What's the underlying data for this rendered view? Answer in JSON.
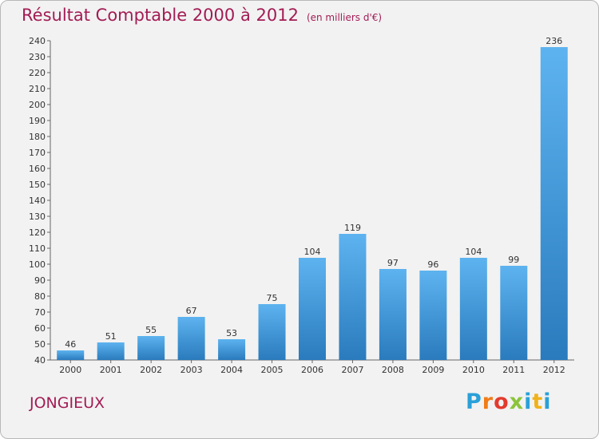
{
  "header": {
    "title": "Résultat Comptable 2000 à 2012",
    "subtitle": "(en milliers d'€)"
  },
  "footer": {
    "place": "JONGIEUX",
    "logo_text": "Proxiti"
  },
  "colors": {
    "title": "#a21c54",
    "bar_light": "#5db3ef",
    "bar_dark": "#2a7bbd",
    "background": "#f2f2f2"
  },
  "chart_data": {
    "type": "bar",
    "title": "Résultat Comptable 2000 à 2012",
    "subtitle": "(en milliers d'€)",
    "xlabel": "",
    "ylabel": "",
    "categories": [
      "2000",
      "2001",
      "2002",
      "2003",
      "2004",
      "2005",
      "2006",
      "2007",
      "2008",
      "2009",
      "2010",
      "2011",
      "2012"
    ],
    "values": [
      46,
      51,
      55,
      67,
      53,
      75,
      104,
      119,
      97,
      96,
      104,
      99,
      236
    ],
    "ylim": [
      40,
      240
    ],
    "yticks": [
      40,
      50,
      60,
      70,
      80,
      90,
      100,
      110,
      120,
      130,
      140,
      150,
      160,
      170,
      180,
      190,
      200,
      210,
      220,
      230,
      240
    ],
    "grid": false,
    "legend": "none"
  }
}
